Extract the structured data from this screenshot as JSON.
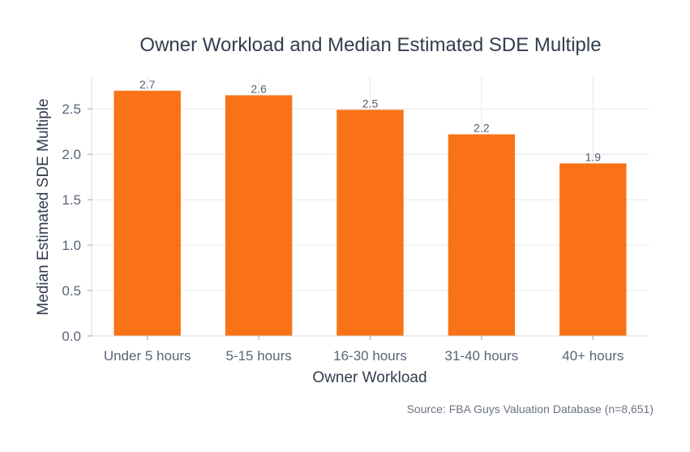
{
  "chart_data": {
    "type": "bar",
    "title": "Owner Workload and Median Estimated SDE Multiple",
    "xlabel": "Owner Workload",
    "ylabel": "Median Estimated SDE Multiple",
    "categories": [
      "Under 5 hours",
      "5-15 hours",
      "16-30 hours",
      "31-40 hours",
      "40+ hours"
    ],
    "values": [
      2.7,
      2.65,
      2.49,
      2.22,
      1.9
    ],
    "data_labels": [
      "2.7",
      "2.6",
      "2.5",
      "2.2",
      "1.9"
    ],
    "ylim": [
      0,
      2.85
    ],
    "yticks": [
      0,
      0.5,
      1.0,
      1.5,
      2.0,
      2.5
    ],
    "ytick_labels": [
      "0.0",
      "0.5",
      "1.0",
      "1.5",
      "2.0",
      "2.5"
    ],
    "grid": true,
    "bar_color": "#f97316",
    "source": "Source: FBA Guys Valuation Database (n=8,651)"
  }
}
